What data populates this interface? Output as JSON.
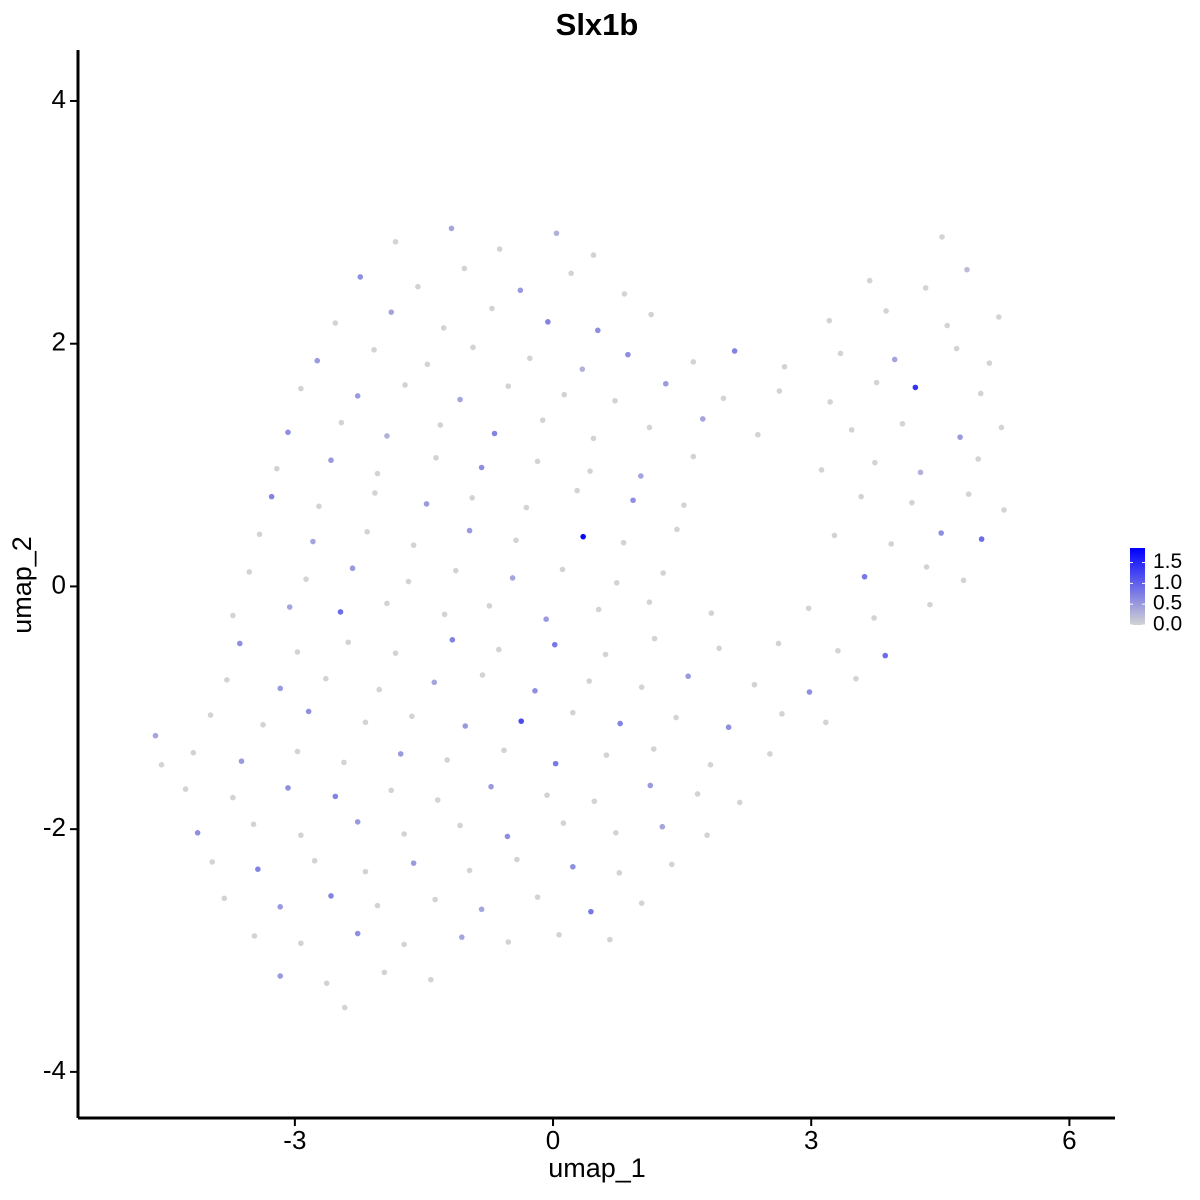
{
  "chart_data": {
    "type": "scatter",
    "title": "Slx1b",
    "x_label": "umap_1",
    "y_label": "umap_2",
    "xlim": [
      -5.52,
      6.53
    ],
    "ylim": [
      -4.38,
      4.42
    ],
    "xticks": [
      -3,
      0,
      3,
      6
    ],
    "yticks": [
      -4,
      -2,
      0,
      2,
      4
    ],
    "color_scale": {
      "low": "#d3d3d3",
      "high": "#0000ff",
      "lim": [
        0,
        1.85
      ],
      "ticks": [
        {
          "value": 0,
          "label": "0.0"
        },
        0.5,
        {
          "value": 1,
          "label": "1.0"
        },
        1.5
      ]
    },
    "x": [
      -1.83,
      -1.18,
      -0.62,
      0.04,
      0.47,
      4.52,
      -2.24,
      -1.57,
      -1.03,
      -0.38,
      0.21,
      0.83,
      3.68,
      4.33,
      4.81,
      -2.53,
      -1.88,
      -1.27,
      -0.71,
      -0.06,
      0.52,
      1.14,
      3.21,
      3.87,
      4.58,
      5.18,
      -2.74,
      -2.08,
      -1.46,
      -0.93,
      -0.27,
      0.34,
      0.87,
      1.63,
      2.11,
      2.69,
      3.34,
      3.97,
      4.69,
      5.07,
      -2.93,
      -2.27,
      -1.72,
      -1.08,
      -0.52,
      0.13,
      0.72,
      1.31,
      1.98,
      2.63,
      3.22,
      3.76,
      4.21,
      4.97,
      -3.08,
      -2.46,
      -1.93,
      -1.31,
      -0.68,
      -0.12,
      0.47,
      1.12,
      1.74,
      2.38,
      3.47,
      4.06,
      4.73,
      5.21,
      -3.21,
      -2.58,
      -2.04,
      -1.36,
      -0.83,
      -0.18,
      0.43,
      1.02,
      1.63,
      3.12,
      3.74,
      4.27,
      4.94,
      -3.27,
      -2.72,
      -2.07,
      -1.47,
      -0.94,
      -0.31,
      0.28,
      0.93,
      1.52,
      3.58,
      4.17,
      4.83,
      5.24,
      -3.41,
      -2.79,
      -2.16,
      -1.62,
      -0.97,
      -0.43,
      0.35,
      0.82,
      1.44,
      3.27,
      3.93,
      4.51,
      4.98,
      -3.53,
      -2.87,
      -2.33,
      -1.68,
      -1.13,
      -0.47,
      0.11,
      0.74,
      1.28,
      3.62,
      4.34,
      4.77,
      -3.72,
      -3.06,
      -2.47,
      -1.93,
      -1.26,
      -0.74,
      -0.08,
      0.53,
      1.12,
      1.84,
      2.97,
      3.73,
      4.38,
      -3.64,
      -2.97,
      -2.38,
      -1.83,
      -1.17,
      -0.63,
      0.02,
      0.61,
      1.18,
      1.93,
      2.62,
      3.31,
      3.86,
      -3.79,
      -3.17,
      -2.64,
      -2.02,
      -1.38,
      -0.82,
      -0.21,
      0.42,
      1.03,
      1.57,
      2.34,
      2.98,
      3.52,
      -3.98,
      -3.37,
      -2.84,
      -2.18,
      -1.64,
      -1.02,
      -0.37,
      0.23,
      0.78,
      1.43,
      2.04,
      2.66,
      3.17,
      -4.18,
      -3.62,
      -2.97,
      -2.43,
      -1.77,
      -1.23,
      -0.57,
      0.03,
      0.62,
      1.17,
      1.83,
      2.52,
      -4.27,
      -3.72,
      -3.08,
      -2.53,
      -1.88,
      -1.34,
      -0.72,
      -0.07,
      0.48,
      1.13,
      1.68,
      2.17,
      -4.13,
      -3.48,
      -2.93,
      -2.27,
      -1.73,
      -1.08,
      -0.53,
      0.12,
      0.73,
      1.27,
      1.79,
      -3.96,
      -3.43,
      -2.77,
      -2.18,
      -1.62,
      -0.97,
      -0.42,
      0.23,
      0.77,
      1.38,
      -3.82,
      -3.17,
      -2.58,
      -2.04,
      -1.37,
      -0.83,
      -0.18,
      0.44,
      1.03,
      -3.47,
      -2.93,
      -2.27,
      -1.73,
      -1.06,
      -0.52,
      0.07,
      0.66,
      -3.17,
      -2.63,
      -1.96,
      -1.42,
      -2.42,
      -4.62,
      -4.55
    ],
    "y": [
      2.84,
      2.95,
      2.78,
      2.91,
      2.73,
      2.88,
      2.55,
      2.47,
      2.62,
      2.44,
      2.58,
      2.41,
      2.52,
      2.46,
      2.61,
      2.17,
      2.26,
      2.13,
      2.29,
      2.18,
      2.11,
      2.24,
      2.19,
      2.27,
      2.15,
      2.22,
      1.86,
      1.95,
      1.83,
      1.97,
      1.88,
      1.79,
      1.91,
      1.85,
      1.94,
      1.81,
      1.92,
      1.87,
      1.96,
      1.84,
      1.63,
      1.57,
      1.66,
      1.54,
      1.65,
      1.58,
      1.53,
      1.67,
      1.55,
      1.61,
      1.52,
      1.68,
      1.64,
      1.59,
      1.27,
      1.35,
      1.24,
      1.33,
      1.26,
      1.37,
      1.22,
      1.31,
      1.38,
      1.25,
      1.29,
      1.34,
      1.23,
      1.31,
      0.97,
      1.04,
      0.93,
      1.06,
      0.98,
      1.03,
      0.95,
      0.91,
      1.07,
      0.96,
      1.02,
      0.94,
      1.05,
      0.74,
      0.66,
      0.77,
      0.68,
      0.73,
      0.65,
      0.79,
      0.71,
      0.67,
      0.74,
      0.69,
      0.76,
      0.63,
      0.43,
      0.37,
      0.45,
      0.34,
      0.46,
      0.38,
      0.41,
      0.36,
      0.47,
      0.42,
      0.35,
      0.44,
      0.39,
      0.12,
      0.06,
      0.15,
      0.04,
      0.13,
      0.07,
      0.14,
      0.03,
      0.11,
      0.08,
      0.16,
      0.05,
      -0.24,
      -0.17,
      -0.21,
      -0.14,
      -0.23,
      -0.16,
      -0.27,
      -0.19,
      -0.13,
      -0.22,
      -0.18,
      -0.26,
      -0.15,
      -0.47,
      -0.54,
      -0.46,
      -0.55,
      -0.44,
      -0.52,
      -0.48,
      -0.56,
      -0.43,
      -0.51,
      -0.47,
      -0.53,
      -0.57,
      -0.77,
      -0.84,
      -0.76,
      -0.85,
      -0.79,
      -0.73,
      -0.86,
      -0.78,
      -0.83,
      -0.74,
      -0.81,
      -0.87,
      -0.76,
      -1.06,
      -1.14,
      -1.03,
      -1.12,
      -1.07,
      -1.15,
      -1.11,
      -1.04,
      -1.13,
      -1.08,
      -1.16,
      -1.05,
      -1.12,
      -1.37,
      -1.44,
      -1.36,
      -1.45,
      -1.38,
      -1.43,
      -1.35,
      -1.46,
      -1.39,
      -1.34,
      -1.47,
      -1.38,
      -1.67,
      -1.74,
      -1.66,
      -1.73,
      -1.68,
      -1.76,
      -1.65,
      -1.72,
      -1.77,
      -1.64,
      -1.71,
      -1.78,
      -2.03,
      -1.96,
      -2.05,
      -1.94,
      -2.04,
      -1.97,
      -2.06,
      -1.95,
      -2.03,
      -1.98,
      -2.05,
      -2.27,
      -2.33,
      -2.26,
      -2.35,
      -2.28,
      -2.34,
      -2.25,
      -2.31,
      -2.36,
      -2.29,
      -2.57,
      -2.64,
      -2.55,
      -2.63,
      -2.58,
      -2.66,
      -2.56,
      -2.68,
      -2.61,
      -2.88,
      -2.94,
      -2.86,
      -2.95,
      -2.89,
      -2.93,
      -2.87,
      -2.91,
      -3.21,
      -3.27,
      -3.18,
      -3.24,
      -3.47,
      -1.23,
      -1.47
    ],
    "expression": [
      0,
      0.4,
      0,
      0.3,
      0,
      0,
      0.6,
      0,
      0,
      0.5,
      0,
      0,
      0,
      0,
      0.2,
      0,
      0.4,
      0,
      0,
      0.7,
      0.6,
      0,
      0,
      0,
      0,
      0,
      0.5,
      0,
      0,
      0,
      0,
      0.3,
      0.6,
      0,
      0.7,
      0,
      0,
      0.4,
      0,
      0,
      0,
      0.5,
      0,
      0.4,
      0,
      0,
      0,
      0.5,
      0,
      0,
      0,
      0,
      1.4,
      0,
      0.6,
      0,
      0.3,
      0,
      0.7,
      0,
      0,
      0,
      0.4,
      0,
      0,
      0,
      0.5,
      0,
      0,
      0.5,
      0,
      0,
      0.6,
      0,
      0,
      0.4,
      0,
      0,
      0,
      0.3,
      0,
      0.7,
      0,
      0,
      0.5,
      0,
      0,
      0,
      0.6,
      0,
      0,
      0,
      0,
      0,
      0,
      0.4,
      0,
      0,
      0.5,
      0,
      1.8,
      0,
      0,
      0,
      0,
      0.6,
      0.9,
      0,
      0,
      0.5,
      0,
      0,
      0.4,
      0,
      0,
      0,
      0.8,
      0,
      0,
      0,
      0.4,
      0.9,
      0,
      0,
      0,
      0.5,
      0,
      0,
      0,
      0,
      0,
      0,
      0.6,
      0,
      0,
      0,
      0.7,
      0,
      0.8,
      0,
      0,
      0,
      0,
      0,
      0.9,
      0,
      0.5,
      0,
      0,
      0.4,
      0,
      0.6,
      0,
      0,
      0.5,
      0,
      0.6,
      0,
      0,
      0,
      0.6,
      0,
      0,
      0.5,
      1.2,
      0,
      0.7,
      0,
      0.6,
      0,
      0,
      0,
      0.5,
      0,
      0,
      0.5,
      0,
      0,
      0.8,
      0,
      0,
      0,
      0,
      0,
      0,
      0.6,
      0.7,
      0,
      0,
      0.5,
      0,
      0,
      0.5,
      0,
      0,
      0.6,
      0,
      0,
      0.5,
      0,
      0,
      0.6,
      0,
      0,
      0.4,
      0,
      0,
      0.7,
      0,
      0,
      0.5,
      0,
      0,
      0.6,
      0,
      0,
      0,
      0.5,
      0.7,
      0,
      0,
      0.4,
      0,
      0.8,
      0,
      0,
      0,
      0.6,
      0,
      0.4,
      0,
      0,
      0,
      0.5,
      0,
      0,
      0,
      0,
      0.4,
      0
    ]
  }
}
